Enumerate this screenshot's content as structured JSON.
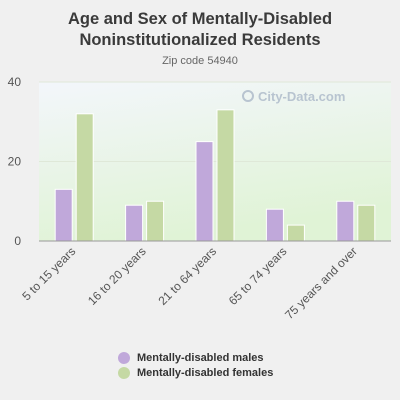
{
  "title_line1": "Age and Sex of Mentally-Disabled",
  "title_line2": "Noninstitutionalized Residents",
  "subtitle": "Zip code 54940",
  "watermark": "City-Data.com",
  "colors": {
    "males": "#c0a8da",
    "females": "#c5d9a4",
    "axis_text": "#555555",
    "plot_bg_top": "#f3f6fb",
    "plot_bg_bottom": "#e0f3d6"
  },
  "chart_data": {
    "type": "bar",
    "categories": [
      "5 to 15 years",
      "16 to 20 years",
      "21 to 64 years",
      "65 to 74 years",
      "75 years and over"
    ],
    "series": [
      {
        "name": "Mentally-disabled males",
        "values": [
          13,
          9,
          25,
          8,
          10
        ]
      },
      {
        "name": "Mentally-disabled females",
        "values": [
          32,
          10,
          33,
          4,
          9
        ]
      }
    ],
    "yticks": [
      0,
      20,
      40
    ],
    "ylim": [
      0,
      40
    ],
    "grid": true,
    "legend_position": "bottom"
  }
}
